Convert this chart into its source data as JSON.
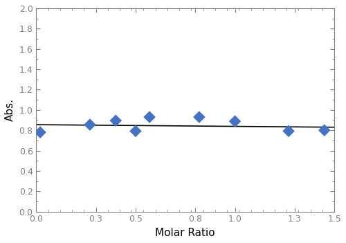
{
  "x_data": [
    0.02,
    0.27,
    0.4,
    0.5,
    0.57,
    0.82,
    1.0,
    1.27,
    1.45
  ],
  "y_data": [
    0.78,
    0.855,
    0.895,
    0.792,
    0.93,
    0.93,
    0.888,
    0.792,
    0.8
  ],
  "line_x": [
    0.0,
    1.5
  ],
  "line_y": [
    0.855,
    0.83
  ],
  "marker_color": "#4472C4",
  "line_color": "#000000",
  "xlabel": "Molar Ratio",
  "ylabel": "Abs.",
  "xlim": [
    0.0,
    1.5
  ],
  "ylim": [
    0.0,
    2.0
  ],
  "xticks": [
    0.0,
    0.3,
    0.5,
    0.8,
    1.0,
    1.3,
    1.5
  ],
  "yticks": [
    0.0,
    0.2,
    0.4,
    0.6,
    0.8,
    1.0,
    1.2,
    1.4,
    1.6,
    1.8,
    2.0
  ],
  "marker_size": 80,
  "line_width": 1.2,
  "xlabel_fontsize": 11,
  "ylabel_fontsize": 11,
  "tick_fontsize": 9,
  "spine_color": "#808080",
  "background_color": "#ffffff"
}
